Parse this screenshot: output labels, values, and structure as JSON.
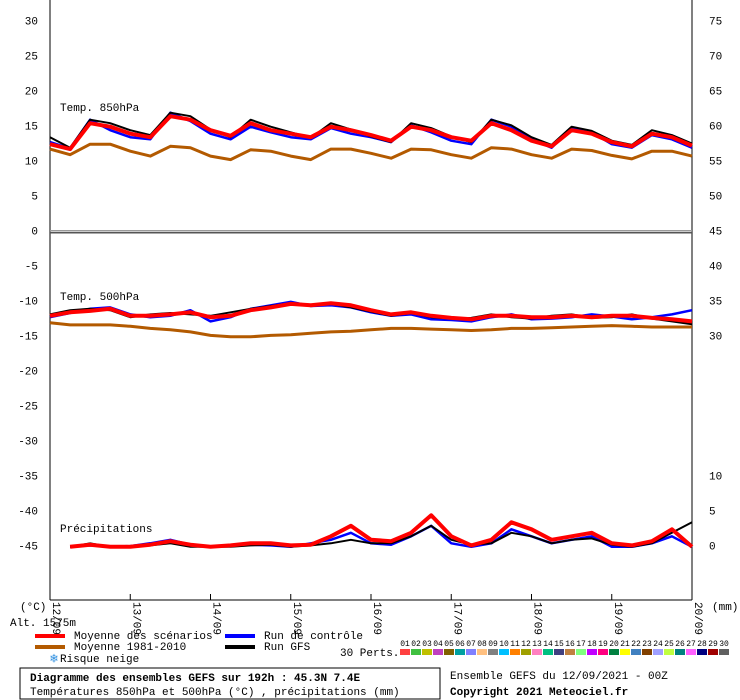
{
  "chart_data": {
    "type": "line",
    "title": "Diagramme des ensembles GEFS sur 192h : 45.3N 7.4E",
    "subtitle": "Températures 850hPa et 500hPa (°C) , précipitations (mm)",
    "run_info": "Ensemble GEFS du 12/09/2021 - 00Z",
    "copyright": "Copyright 2021 Meteociel.fr",
    "y_axis_label": "(°C)",
    "y2_axis_label": "(mm)",
    "altitude": "Alt. 1575m",
    "panels": {
      "t850": "Temp. 850hPa",
      "t500": "Temp. 500hPa",
      "precip": "Précipitations"
    },
    "snow_legend": "Risque neige",
    "perts_label": "30 Perts.",
    "perturbations": [
      {
        "label": "01",
        "color": "#ff4040"
      },
      {
        "label": "02",
        "color": "#40c040"
      },
      {
        "label": "03",
        "color": "#c0c000"
      },
      {
        "label": "04",
        "color": "#c040c0"
      },
      {
        "label": "05",
        "color": "#806000"
      },
      {
        "label": "06",
        "color": "#00a0a0"
      },
      {
        "label": "07",
        "color": "#8080ff"
      },
      {
        "label": "08",
        "color": "#ffc080"
      },
      {
        "label": "09",
        "color": "#808080"
      },
      {
        "label": "10",
        "color": "#00c0ff"
      },
      {
        "label": "11",
        "color": "#ff8000"
      },
      {
        "label": "12",
        "color": "#a0a000"
      },
      {
        "label": "13",
        "color": "#ff80c0"
      },
      {
        "label": "14",
        "color": "#00c080"
      },
      {
        "label": "15",
        "color": "#404080"
      },
      {
        "label": "16",
        "color": "#c08040"
      },
      {
        "label": "17",
        "color": "#80ff80"
      },
      {
        "label": "18",
        "color": "#c000ff"
      },
      {
        "label": "19",
        "color": "#ff0080"
      },
      {
        "label": "20",
        "color": "#008040"
      },
      {
        "label": "21",
        "color": "#ffff00"
      },
      {
        "label": "22",
        "color": "#4080c0"
      },
      {
        "label": "23",
        "color": "#804000"
      },
      {
        "label": "24",
        "color": "#a0a0ff"
      },
      {
        "label": "25",
        "color": "#c0ff40"
      },
      {
        "label": "26",
        "color": "#008080"
      },
      {
        "label": "27",
        "color": "#ff60ff"
      },
      {
        "label": "28",
        "color": "#000080"
      },
      {
        "label": "29",
        "color": "#a00000"
      },
      {
        "label": "30",
        "color": "#606060"
      }
    ],
    "x": [
      0,
      6,
      12,
      18,
      24,
      30,
      36,
      42,
      48,
      54,
      60,
      66,
      72,
      78,
      84,
      90,
      96,
      102,
      108,
      114,
      120,
      126,
      132,
      138,
      144,
      150,
      156,
      162,
      168,
      174,
      180,
      186,
      192
    ],
    "xlim": [
      0,
      192
    ],
    "xticks": [
      {
        "value": 0,
        "label": "12/09"
      },
      {
        "value": 24,
        "label": "13/09"
      },
      {
        "value": 48,
        "label": "14/09"
      },
      {
        "value": 72,
        "label": "15/09"
      },
      {
        "value": 96,
        "label": "16/09"
      },
      {
        "value": 120,
        "label": "17/09"
      },
      {
        "value": 144,
        "label": "18/09"
      },
      {
        "value": 168,
        "label": "19/09"
      },
      {
        "value": 192,
        "label": "20/09"
      }
    ],
    "ylim": [
      -52.6,
      33.1
    ],
    "yticks": [
      30,
      25,
      20,
      15,
      10,
      5,
      0,
      -5,
      -10,
      -15,
      -20,
      -25,
      -30,
      -35,
      -40,
      -45
    ],
    "y2lim": [
      -7.6,
      78.1
    ],
    "y2ticks": [
      75,
      70,
      65,
      60,
      55,
      50,
      45,
      40,
      35,
      30,
      10,
      5,
      0
    ],
    "zero_line": true,
    "series": [
      {
        "name": "Run de contrôle",
        "color": "#0000ff",
        "width": 2.5,
        "t850": [
          12.8,
          11.9,
          16,
          14.5,
          13.5,
          13.2,
          17,
          15.8,
          14,
          13.2,
          15,
          14.2,
          13.5,
          13.2,
          14.8,
          14,
          13.5,
          12.8,
          15.2,
          14.2,
          13,
          12.5,
          16,
          15,
          13.2,
          12,
          14.8,
          14.2,
          12.5,
          12,
          13.8,
          13.2,
          12
        ],
        "t500": [
          -12.2,
          -11.6,
          -11,
          -10.8,
          -11.8,
          -12.2,
          -12,
          -11.2,
          -12.8,
          -12.2,
          -11,
          -10.5,
          -10,
          -10.6,
          -10.5,
          -10.8,
          -11.5,
          -12,
          -11.8,
          -12.5,
          -12.6,
          -12.8,
          -12.2,
          -11.8,
          -12.5,
          -12.4,
          -12.2,
          -11.8,
          -12.1,
          -12.5,
          -12.2,
          -11.8,
          -11.2
        ],
        "precip": [
          null,
          0,
          0.2,
          0,
          0.1,
          0.5,
          1,
          0.3,
          0,
          0.2,
          0.3,
          0.2,
          0,
          0.5,
          1,
          2,
          0.5,
          0.3,
          1.5,
          3,
          0.5,
          0,
          0.5,
          2.5,
          1.5,
          0.5,
          1,
          1.5,
          0,
          0,
          0.5,
          1.5,
          0
        ]
      },
      {
        "name": "Run GFS",
        "color": "#000000",
        "width": 2,
        "t850": [
          13.5,
          12,
          16,
          15.5,
          14.5,
          13.8,
          17,
          16.5,
          14.6,
          13.5,
          16,
          15,
          14.2,
          13.4,
          15.5,
          14.6,
          13.6,
          12.8,
          15.5,
          14.8,
          13.6,
          12.8,
          16,
          15.2,
          13.5,
          12.4,
          15,
          14.4,
          13,
          12.4,
          14.5,
          13.8,
          12.6
        ],
        "t500": [
          -11.8,
          -11.2,
          -11,
          -11.2,
          -12.2,
          -11.8,
          -11.6,
          -11.8,
          -12,
          -11.5,
          -11,
          -10.6,
          -10.2,
          -10.4,
          -10.3,
          -10.8,
          -11.4,
          -12,
          -11.6,
          -12.2,
          -12.4,
          -12.3,
          -11.8,
          -12.2,
          -12.4,
          -12,
          -11.8,
          -12.3,
          -12.2,
          -11.8,
          -12.4,
          -12.8,
          -13.2
        ],
        "precip": [
          null,
          0,
          0.5,
          0,
          0,
          0.2,
          0.5,
          0,
          0,
          0,
          0.2,
          0.3,
          0,
          0.2,
          0.5,
          1,
          0.5,
          0.5,
          1.5,
          3,
          1,
          0.3,
          0.5,
          2,
          1.5,
          0.5,
          1,
          1.2,
          0.3,
          0,
          0.5,
          2,
          3.5
        ]
      },
      {
        "name": "Moyenne 1981-2010",
        "color": "#b35a00",
        "width": 3,
        "t850": [
          11.8,
          11,
          12.5,
          12.5,
          11.5,
          10.8,
          12.2,
          12,
          10.8,
          10.3,
          11.7,
          11.5,
          10.8,
          10.3,
          11.8,
          11.8,
          11.2,
          10.5,
          11.8,
          11.7,
          11,
          10.5,
          12,
          11.8,
          11,
          10.5,
          11.8,
          11.6,
          10.9,
          10.4,
          11.5,
          11.5,
          10.8
        ],
        "t500": [
          -13,
          -13.3,
          -13.3,
          -13.3,
          -13.5,
          -13.8,
          -14,
          -14.3,
          -14.8,
          -15,
          -15,
          -14.8,
          -14.7,
          -14.5,
          -14.3,
          -14.2,
          -14,
          -13.8,
          -13.8,
          -13.9,
          -14,
          -14.1,
          -14,
          -13.8,
          -13.8,
          -13.7,
          -13.6,
          -13.5,
          -13.4,
          -13.5,
          -13.6,
          -13.6,
          -13.6
        ]
      },
      {
        "name": "Moyenne des scénarios",
        "color": "#ff0000",
        "width": 4,
        "t850": [
          12.5,
          11.8,
          15.5,
          15,
          14,
          13.5,
          16.5,
          16,
          14.5,
          13.7,
          15.5,
          14.5,
          14,
          13.5,
          15,
          14.5,
          13.8,
          13,
          15,
          14.5,
          13.5,
          13,
          15.5,
          14.5,
          13,
          12.2,
          14.5,
          14,
          12.8,
          12.2,
          14,
          13.5,
          12.3
        ],
        "t500": [
          -12,
          -11.5,
          -11.3,
          -11,
          -12,
          -12,
          -11.8,
          -11.5,
          -12.2,
          -12,
          -11.2,
          -10.8,
          -10.3,
          -10.5,
          -10.2,
          -10.5,
          -11.2,
          -11.8,
          -11.5,
          -12,
          -12.3,
          -12.5,
          -12,
          -12,
          -12.2,
          -12.2,
          -12,
          -12.2,
          -12,
          -12,
          -12.3,
          -12.5,
          -12.8
        ],
        "precip": [
          null,
          0,
          0.3,
          0,
          0,
          0.3,
          0.8,
          0.3,
          0,
          0.2,
          0.5,
          0.5,
          0.2,
          0.3,
          1.5,
          3,
          1,
          0.8,
          2,
          4.5,
          1.5,
          0.2,
          1,
          3.5,
          2.5,
          1,
          1.5,
          2,
          0.5,
          0.2,
          0.8,
          2.5,
          0
        ]
      }
    ]
  }
}
